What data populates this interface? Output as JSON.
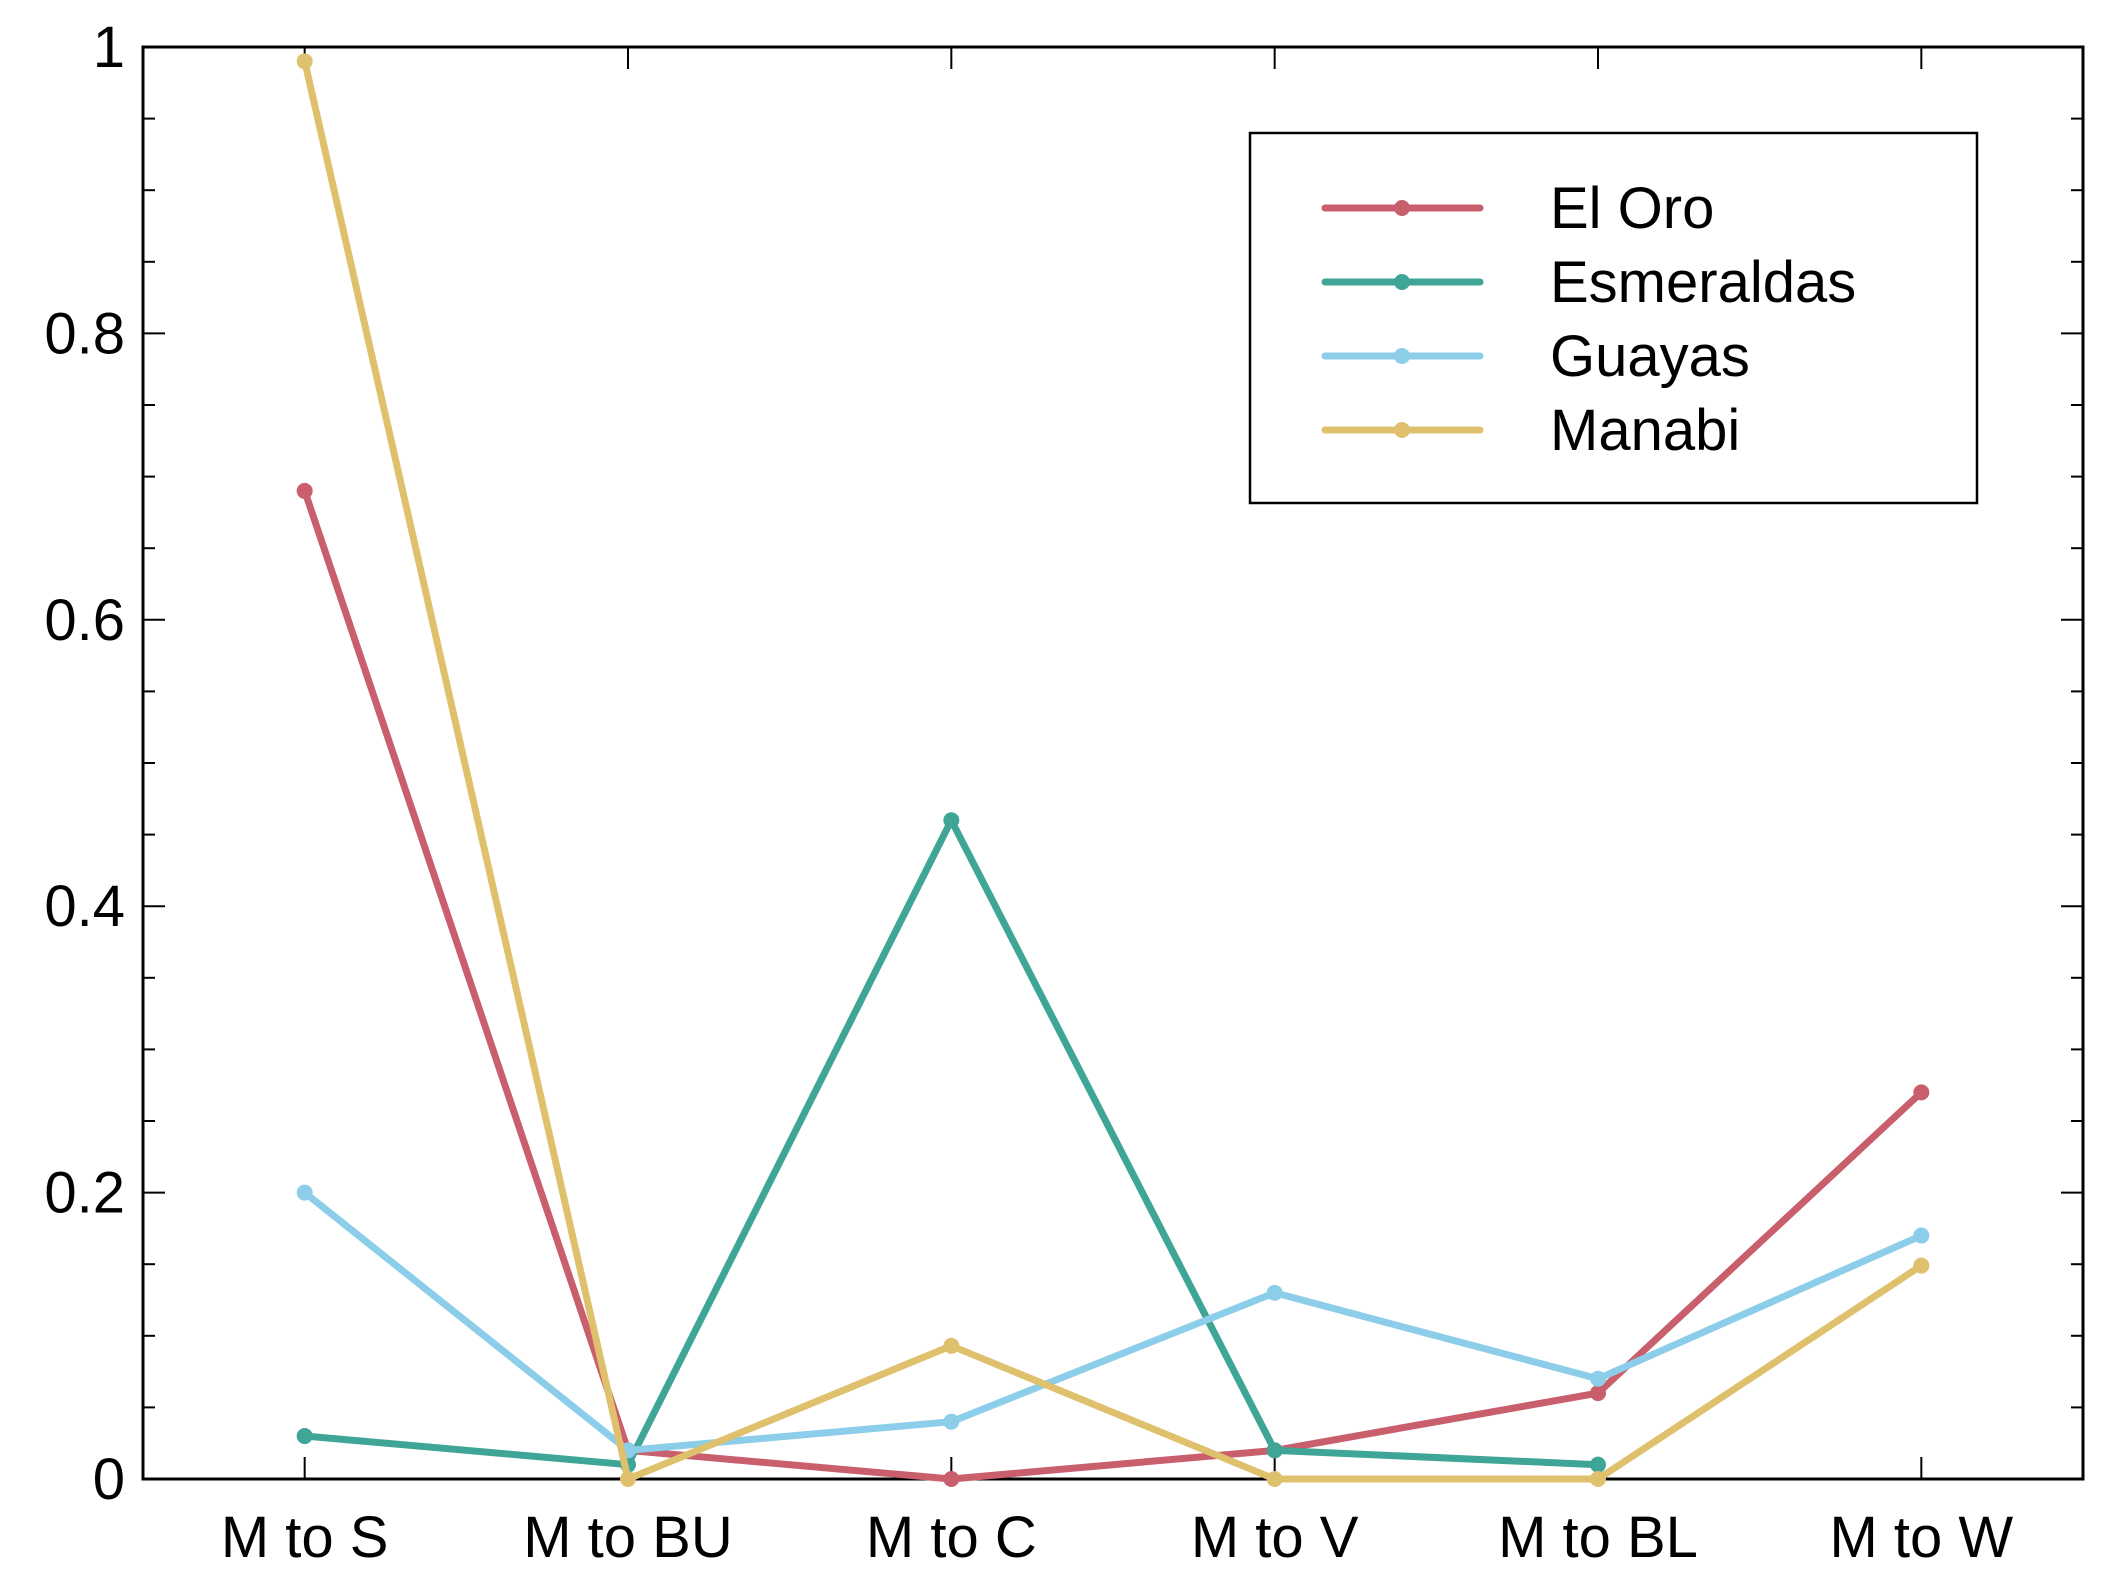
{
  "chart_data": {
    "type": "line",
    "title": "",
    "xlabel": "",
    "ylabel": "",
    "categories": [
      "M to S",
      "M to BU",
      "M to C",
      "M to V",
      "M to BL",
      "M to W"
    ],
    "ylim": [
      0,
      1
    ],
    "y_ticks": [
      0,
      0.2,
      0.4,
      0.6,
      0.8,
      1
    ],
    "y_tick_labels": [
      "0",
      "0.2",
      "0.4",
      "0.6",
      "0.8",
      "1"
    ],
    "grid": false,
    "legend_position": "top-right",
    "series": [
      {
        "name": "El Oro",
        "color": "#c95f6c",
        "values": [
          0.69,
          0.02,
          0.0,
          0.02,
          0.06,
          0.27
        ]
      },
      {
        "name": "Esmeraldas",
        "color": "#3fa596",
        "values": [
          0.03,
          0.01,
          0.46,
          0.02,
          0.01,
          null
        ]
      },
      {
        "name": "Guayas",
        "color": "#8ccde9",
        "values": [
          0.2,
          0.02,
          0.04,
          0.13,
          0.07,
          0.17
        ]
      },
      {
        "name": "Manabi",
        "color": "#dfc06c",
        "values": [
          0.99,
          0.0,
          0.093,
          0.0,
          0.0,
          0.149
        ]
      }
    ]
  }
}
